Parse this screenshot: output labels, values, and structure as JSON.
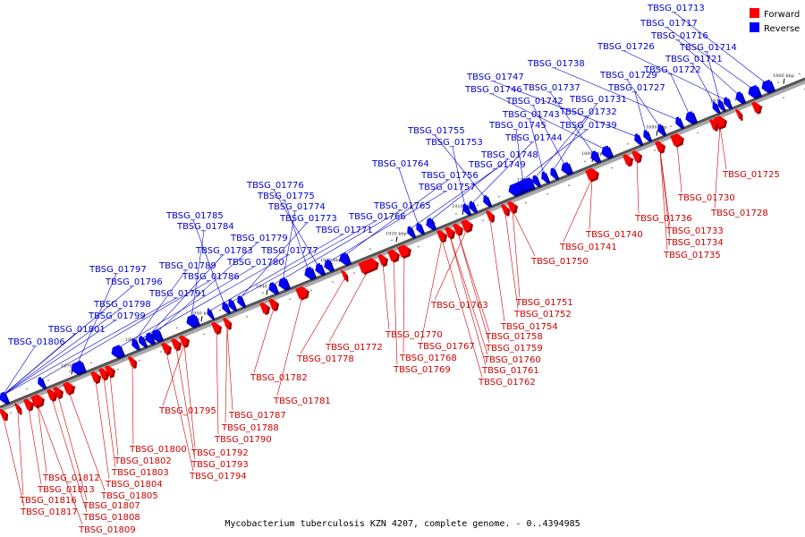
{
  "legend": {
    "forward_label": "Forward",
    "reverse_label": "Reverse",
    "forward_color": "#ff0000",
    "reverse_color": "#0000ff"
  },
  "caption": "Mycobacterium tuberculosis KZN 4207, complete genome. - 0..4394985",
  "axis_labels": [
    "1860 kbp",
    "1870 kbp",
    "1880 kbp",
    "1890 kbp",
    "1900 kbp",
    "1910 kbp",
    "1920 kbp",
    "1930 kbp",
    "1940 kbp",
    "1950 kbp",
    "1960 kbp",
    "1970 kbp"
  ],
  "reverse_genes": [
    "TBSG_01713",
    "TBSG_01717",
    "TBSG_01716",
    "TBSG_01726",
    "TBSG_01714",
    "TBSG_01721",
    "TBSG_01722",
    "TBSG_01738",
    "TBSG_01729",
    "TBSG_01727",
    "TBSG_01747",
    "TBSG_01746",
    "TBSG_01737",
    "TBSG_01742",
    "TBSG_01731",
    "TBSG_01743",
    "TBSG_01732",
    "TBSG_01745",
    "TBSG_01739",
    "TBSG_01755",
    "TBSG_01744",
    "TBSG_01753",
    "TBSG_01748",
    "TBSG_01764",
    "TBSG_01749",
    "TBSG_01756",
    "TBSG_01757",
    "TBSG_01776",
    "TBSG_01775",
    "TBSG_01774",
    "TBSG_01765",
    "TBSG_01773",
    "TBSG_01766",
    "TBSG_01785",
    "TBSG_01771",
    "TBSG_01784",
    "TBSG_01779",
    "TBSG_01783",
    "TBSG_01777",
    "TBSG_01789",
    "TBSG_01780",
    "TBSG_01797",
    "TBSG_01786",
    "TBSG_01796",
    "TBSG_01791",
    "TBSG_01798",
    "TBSG_01799",
    "TBSG_01801",
    "TBSG_01806"
  ],
  "forward_genes": [
    "TBSG_01725",
    "TBSG_01730",
    "TBSG_01728",
    "TBSG_01736",
    "TBSG_01733",
    "TBSG_01734",
    "TBSG_01735",
    "TBSG_01740",
    "TBSG_01741",
    "TBSG_01750",
    "TBSG_01751",
    "TBSG_01752",
    "TBSG_01754",
    "TBSG_01763",
    "TBSG_01758",
    "TBSG_01759",
    "TBSG_01760",
    "TBSG_01761",
    "TBSG_01762",
    "TBSG_01767",
    "TBSG_01768",
    "TBSG_01769",
    "TBSG_01770",
    "TBSG_01772",
    "TBSG_01778",
    "TBSG_01781",
    "TBSG_01782",
    "TBSG_01787",
    "TBSG_01788",
    "TBSG_01790",
    "TBSG_01795",
    "TBSG_01792",
    "TBSG_01793",
    "TBSG_01794",
    "TBSG_01800",
    "TBSG_01802",
    "TBSG_01803",
    "TBSG_01804",
    "TBSG_01805",
    "TBSG_01807",
    "TBSG_01808",
    "TBSG_01809",
    "TBSG_01812",
    "TBSG_01813",
    "TBSG_01816",
    "TBSG_01817"
  ]
}
